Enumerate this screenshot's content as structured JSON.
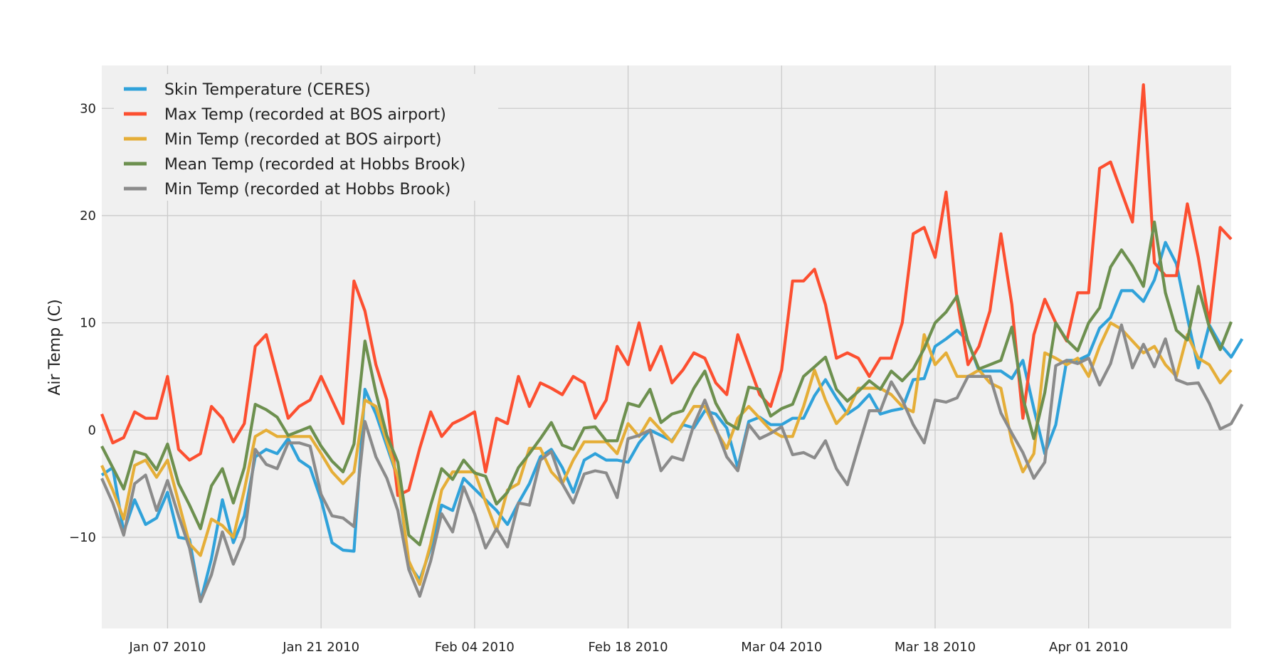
{
  "chart_data": {
    "type": "line",
    "xlabel": "",
    "ylabel": "Air Temp (C)",
    "x_start": "2010-01-01",
    "x_end": "2010-04-14",
    "xlim": [
      "2010-01-01",
      "2010-04-14"
    ],
    "ylim": [
      -18.5,
      34
    ],
    "x_ticks": [
      {
        "date": "2010-01-07",
        "label": "Jan 07 2010"
      },
      {
        "date": "2010-01-21",
        "label": "Jan 21 2010"
      },
      {
        "date": "2010-02-04",
        "label": "Feb 04 2010"
      },
      {
        "date": "2010-02-18",
        "label": "Feb 18 2010"
      },
      {
        "date": "2010-03-04",
        "label": "Mar 04 2010"
      },
      {
        "date": "2010-03-18",
        "label": "Mar 18 2010"
      },
      {
        "date": "2010-04-01",
        "label": "Apr 01 2010"
      }
    ],
    "y_ticks": [
      {
        "value": -10,
        "label": "−10"
      },
      {
        "value": 0,
        "label": "0"
      },
      {
        "value": 10,
        "label": "10"
      },
      {
        "value": 20,
        "label": "20"
      },
      {
        "value": 30,
        "label": "30"
      }
    ],
    "grid": true,
    "legend_position": "top-left",
    "series": [
      {
        "name": "Skin Temperature (CERES)",
        "color": "#30a2da",
        "values": [
          -4.2,
          -3.5,
          -9.5,
          -6.5,
          -8.8,
          -8.2,
          -5.8,
          -10,
          -10.2,
          -16,
          -12,
          -6.5,
          -10.5,
          -8,
          -2.5,
          -1.8,
          -2.2,
          -0.8,
          -2.8,
          -3.5,
          -6.5,
          -10.5,
          -11.2,
          -11.3,
          3.8,
          1.5,
          -1.5,
          -4.5,
          -12.5,
          -14,
          -11,
          -7,
          -7.5,
          -4.5,
          -5.5,
          -6.5,
          -7.5,
          -8.8,
          -6.8,
          -5,
          -2.5,
          -1.8,
          -3.5,
          -5.8,
          -2.8,
          -2.2,
          -2.8,
          -2.8,
          -3,
          -1.2,
          0,
          -0.5,
          -1,
          0.5,
          0.2,
          1.8,
          1.5,
          0.2,
          -3.5,
          0.8,
          1.2,
          0.5,
          0.5,
          1.1,
          1.1,
          3.2,
          4.7,
          3,
          1.5,
          2.2,
          3.3,
          1.5,
          1.8,
          2,
          4.7,
          4.8,
          7.8,
          8.5,
          9.3,
          8.3,
          5.5,
          5.5,
          5.5,
          4.8,
          6.5,
          2,
          -2.2,
          0.5,
          6.5,
          6.5,
          7,
          9.5,
          10.5,
          13,
          13,
          12,
          14,
          17.5,
          15.5,
          10.5,
          5.8,
          9.8,
          8,
          6.8,
          8.5
        ]
      },
      {
        "name": "Max Temp (recorded at BOS airport)",
        "color": "#fc4f30",
        "values": [
          1.5,
          -1.2,
          -0.7,
          1.7,
          1.1,
          1.1,
          5,
          -1.8,
          -2.8,
          -2.2,
          2.2,
          1.1,
          -1.1,
          0.6,
          7.8,
          8.9,
          5,
          1.1,
          2.2,
          2.8,
          5,
          2.8,
          0.6,
          13.9,
          11.1,
          6.1,
          2.8,
          -6.1,
          -5.6,
          -1.7,
          1.7,
          -0.6,
          0.6,
          1.1,
          1.7,
          -3.9,
          1.1,
          0.6,
          5,
          2.2,
          4.4,
          3.9,
          3.3,
          5,
          4.4,
          1.1,
          2.8,
          7.8,
          6.1,
          10,
          5.6,
          7.8,
          4.4,
          5.6,
          7.2,
          6.7,
          4.4,
          3.3,
          8.9,
          6.1,
          3.3,
          2.2,
          5.6,
          13.9,
          13.9,
          15,
          11.7,
          6.7,
          7.2,
          6.7,
          5,
          6.7,
          6.7,
          10,
          18.3,
          18.9,
          16.1,
          22.2,
          12.2,
          6.1,
          7.8,
          11.1,
          18.3,
          11.7,
          1.1,
          8.9,
          12.2,
          10,
          8.3,
          12.8,
          12.8,
          24.4,
          25,
          22.2,
          19.4,
          32.2,
          15.6,
          14.4,
          14.4,
          21.1,
          16.1,
          10,
          18.9,
          17.8
        ]
      },
      {
        "name": "Min Temp (recorded at BOS airport)",
        "color": "#e5ae38",
        "values": [
          -3.3,
          -5.6,
          -8.3,
          -3.3,
          -2.8,
          -4.4,
          -2.8,
          -6.7,
          -10.6,
          -11.7,
          -8.3,
          -8.9,
          -10,
          -5.6,
          -0.6,
          0,
          -0.6,
          -0.6,
          -0.6,
          -0.6,
          -2.2,
          -3.9,
          -5,
          -3.9,
          2.8,
          2.2,
          -1.1,
          -4.4,
          -12.2,
          -14.4,
          -10.6,
          -5.6,
          -3.9,
          -3.9,
          -3.9,
          -6.7,
          -9.4,
          -5.6,
          -5,
          -1.7,
          -1.7,
          -3.9,
          -5,
          -2.8,
          -1.1,
          -1.1,
          -1.1,
          -2.2,
          0.6,
          -0.6,
          1.1,
          0,
          -1.1,
          0.6,
          2.2,
          2.2,
          0,
          -1.7,
          1.1,
          2.2,
          1.1,
          0,
          -0.6,
          -0.6,
          2.2,
          5.6,
          2.8,
          0.6,
          1.7,
          3.9,
          3.9,
          3.9,
          3.3,
          2.2,
          1.7,
          8.9,
          6.1,
          7.2,
          5,
          5,
          5.6,
          4.4,
          3.9,
          -1.1,
          -3.9,
          -2.2,
          7.2,
          6.7,
          6.1,
          6.7,
          5,
          7.8,
          10,
          9.4,
          8.3,
          7.2,
          7.8,
          6.1,
          5,
          8.9,
          6.7,
          6.1,
          4.4,
          5.6
        ]
      },
      {
        "name": "Mean Temp (recorded at Hobbs Brook)",
        "color": "#6d904f",
        "values": [
          -1.5,
          -3.5,
          -5.5,
          -2,
          -2.3,
          -3.7,
          -1.3,
          -5,
          -7,
          -9.2,
          -5.2,
          -3.6,
          -6.8,
          -3.5,
          2.4,
          1.9,
          1.2,
          -0.5,
          -0.1,
          0.3,
          -1.5,
          -2.9,
          -3.9,
          -1.3,
          8.3,
          3.5,
          -0.5,
          -3,
          -9.8,
          -10.7,
          -7,
          -3.6,
          -4.6,
          -2.8,
          -4,
          -4.3,
          -6.9,
          -5.8,
          -3.5,
          -2.2,
          -0.8,
          0.7,
          -1.4,
          -1.8,
          0.2,
          0.3,
          -1,
          -1,
          2.5,
          2.2,
          3.8,
          0.7,
          1.5,
          1.8,
          3.9,
          5.5,
          2.5,
          0.7,
          0.1,
          4,
          3.8,
          1.3,
          2,
          2.4,
          5,
          5.9,
          6.8,
          3.8,
          2.7,
          3.6,
          4.6,
          3.8,
          5.5,
          4.6,
          5.7,
          7.6,
          10,
          11,
          12.5,
          8.2,
          5.7,
          6.1,
          6.5,
          9.6,
          3,
          -0.8,
          3.5,
          10,
          8.4,
          7.4,
          10,
          11.4,
          15.2,
          16.8,
          15.3,
          13.4,
          19.4,
          12.8,
          9.3,
          8.4,
          13.4,
          9.6,
          7.5,
          10.1
        ]
      },
      {
        "name": "Min Temp (recorded at Hobbs Brook)",
        "color": "#8b8b8b",
        "values": [
          -4.5,
          -6.8,
          -9.8,
          -5,
          -4.2,
          -7.5,
          -4.7,
          -8,
          -11,
          -16,
          -13.5,
          -9.5,
          -12.5,
          -10,
          -1.8,
          -3.2,
          -3.6,
          -1.2,
          -1.2,
          -1.5,
          -6,
          -8,
          -8.2,
          -9,
          0.8,
          -2.5,
          -4.5,
          -7.5,
          -13,
          -15.5,
          -12.2,
          -7.8,
          -9.5,
          -5.3,
          -7.8,
          -11,
          -9.2,
          -10.9,
          -6.8,
          -7,
          -2.8,
          -2,
          -5,
          -6.8,
          -4.1,
          -3.8,
          -4,
          -6.3,
          -0.8,
          -0.5,
          0,
          -3.8,
          -2.5,
          -2.8,
          0.5,
          2.8,
          0.2,
          -2.5,
          -3.8,
          0.5,
          -0.8,
          -0.3,
          0.3,
          -2.3,
          -2.1,
          -2.6,
          -1,
          -3.6,
          -5.1,
          -1.6,
          1.8,
          1.8,
          4.5,
          2.8,
          0.5,
          -1.2,
          2.8,
          2.6,
          3,
          5,
          5,
          5,
          1.6,
          -0.3,
          -2.1,
          -4.5,
          -3,
          6,
          6.5,
          6.2,
          6.7,
          4.2,
          6.2,
          9.8,
          5.8,
          8,
          5.9,
          8.5,
          4.7,
          4.3,
          4.4,
          2.5,
          0.1,
          0.6,
          2.4
        ]
      }
    ]
  }
}
